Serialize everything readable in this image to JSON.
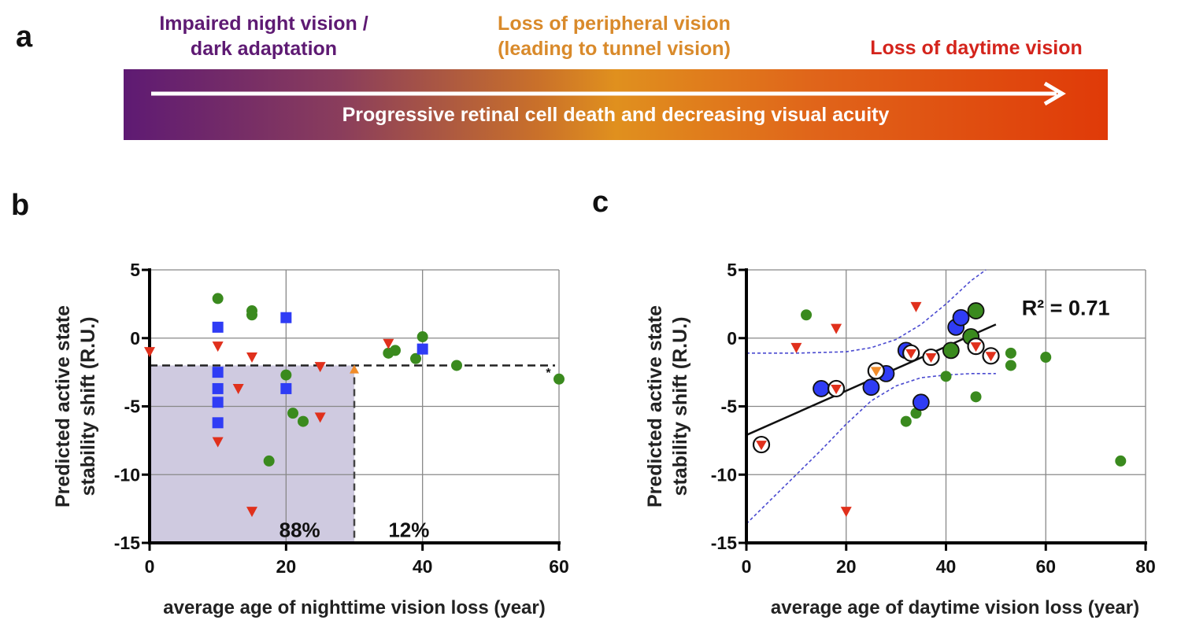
{
  "panel_a": {
    "letter": "a",
    "stage_night": [
      "Impaired night vision /",
      "dark adaptation"
    ],
    "stage_peripheral": [
      "Loss of peripheral vision",
      "(leading to tunnel vision)"
    ],
    "stage_daytime": "Loss of daytime vision",
    "bar_text": "Progressive retinal cell death and decreasing visual acuity",
    "colors": {
      "night": "#5e1a73",
      "peripheral": "#d98a2b",
      "daytime": "#d4241c"
    }
  },
  "chart_data": [
    {
      "id": "b",
      "letter": "b",
      "type": "scatter",
      "title": "",
      "xlabel": "average age of nighttime vision loss (year)",
      "ylabel": [
        "Predicted active state",
        "stability shift (R.U.)"
      ],
      "xlim": [
        0,
        60
      ],
      "ylim": [
        -15,
        5
      ],
      "xticks": [
        0,
        20,
        40,
        60
      ],
      "yticks": [
        5,
        0,
        -5,
        -10,
        -15
      ],
      "grid": true,
      "threshold_y": -2,
      "threshold_x": 30,
      "shaded_region": {
        "x": [
          0,
          30
        ],
        "y": [
          -15,
          -2
        ]
      },
      "annotations": [
        {
          "text": "88%",
          "x": 25,
          "y": -14
        },
        {
          "text": "12%",
          "x": 35,
          "y": -14
        },
        {
          "text": "*",
          "x": 59,
          "y": -2.5
        }
      ],
      "series": [
        {
          "name": "circle",
          "marker": "circle",
          "color": "#3a8a1e",
          "points": [
            [
              10,
              2.9
            ],
            [
              15,
              2.0
            ],
            [
              15,
              1.7
            ],
            [
              20,
              -2.7
            ],
            [
              21,
              -5.5
            ],
            [
              22.5,
              -6.1
            ],
            [
              17.5,
              -9
            ],
            [
              35,
              -1.1
            ],
            [
              36,
              -0.9
            ],
            [
              39,
              -1.5
            ],
            [
              40,
              0.1
            ],
            [
              45,
              -2.0
            ],
            [
              60,
              -3.0
            ]
          ]
        },
        {
          "name": "square",
          "marker": "square",
          "color": "#2f3cf5",
          "points": [
            [
              10,
              0.8
            ],
            [
              10,
              -2.5
            ],
            [
              10,
              -3.7
            ],
            [
              10,
              -4.7
            ],
            [
              10,
              -6.2
            ],
            [
              20,
              1.5
            ],
            [
              20,
              -3.7
            ],
            [
              40,
              -0.8
            ]
          ]
        },
        {
          "name": "triangle",
          "marker": "triangle-down",
          "color": "#e0301c",
          "points": [
            [
              0,
              -1.0
            ],
            [
              10,
              -0.6
            ],
            [
              10,
              -7.6
            ],
            [
              13,
              -3.7
            ],
            [
              15,
              -1.4
            ],
            [
              15,
              -12.7
            ],
            [
              25,
              -2.1
            ],
            [
              25,
              -5.8
            ],
            [
              35,
              -0.4
            ]
          ]
        },
        {
          "name": "orange-triangle",
          "marker": "triangle-up",
          "color": "#f08c2a",
          "points": [
            [
              30,
              -2.3
            ]
          ]
        }
      ]
    },
    {
      "id": "c",
      "letter": "c",
      "type": "scatter",
      "title": "",
      "xlabel": "average age of daytime vision loss (year)",
      "ylabel": [
        "Predicted active state",
        "stability shift (R.U.)"
      ],
      "xlim": [
        0,
        80
      ],
      "ylim": [
        -15,
        5
      ],
      "xticks": [
        0,
        20,
        40,
        60,
        80
      ],
      "yticks": [
        5,
        0,
        -5,
        -10,
        -15
      ],
      "grid": true,
      "annotation": "R² = 0.71",
      "regression": {
        "x": [
          0,
          50
        ],
        "y": [
          -7.1,
          1.0
        ]
      },
      "ci_upper": {
        "x": [
          0,
          10,
          20,
          25,
          30,
          35,
          40,
          45,
          48
        ],
        "y": [
          -1.1,
          -1.1,
          -1.0,
          -0.7,
          -0.1,
          1.0,
          2.5,
          4.2,
          5.0
        ]
      },
      "ci_lower": {
        "x": [
          0,
          5,
          10,
          15,
          20,
          25,
          30,
          35,
          40,
          45,
          50
        ],
        "y": [
          -13.6,
          -11.8,
          -10.0,
          -8.2,
          -6.3,
          -4.6,
          -3.5,
          -2.9,
          -2.7,
          -2.6,
          -2.6
        ]
      },
      "series": [
        {
          "name": "green-small",
          "marker": "circle",
          "size": "small",
          "color": "#3a8a1e",
          "points": [
            [
              12,
              1.7
            ],
            [
              40,
              -2.8
            ],
            [
              32,
              -6.1
            ],
            [
              34,
              -5.5
            ],
            [
              46,
              -4.3
            ],
            [
              53,
              -1.1
            ],
            [
              53,
              -2.0
            ],
            [
              60,
              -1.4
            ],
            [
              75,
              -9.0
            ]
          ]
        },
        {
          "name": "red-small",
          "marker": "triangle-down",
          "size": "small",
          "color": "#e0301c",
          "points": [
            [
              10,
              -0.7
            ],
            [
              18,
              0.7
            ],
            [
              34,
              2.3
            ],
            [
              20,
              -12.7
            ]
          ]
        },
        {
          "name": "blue-large",
          "marker": "circle",
          "size": "large",
          "color": "#2f3cf5",
          "points": [
            [
              15,
              -3.7
            ],
            [
              25,
              -3.6
            ],
            [
              28,
              -2.6
            ],
            [
              32,
              -0.9
            ],
            [
              35,
              -4.7
            ],
            [
              42,
              0.8
            ],
            [
              43,
              1.5
            ]
          ]
        },
        {
          "name": "green-large",
          "marker": "circle",
          "size": "large",
          "color": "#3a8a1e",
          "points": [
            [
              41,
              -0.9
            ],
            [
              45,
              0.1
            ],
            [
              46,
              2.0
            ]
          ]
        },
        {
          "name": "red-outlined",
          "marker": "circle-triangle",
          "size": "large",
          "color": "#e0301c",
          "points": [
            [
              3,
              -7.8
            ],
            [
              18,
              -3.7
            ],
            [
              33,
              -1.1
            ],
            [
              37,
              -1.4
            ],
            [
              46,
              -0.6
            ],
            [
              49,
              -1.3
            ]
          ]
        },
        {
          "name": "orange-outlined",
          "marker": "circle-triangle",
          "size": "large",
          "color": "#f08c2a",
          "points": [
            [
              26,
              -2.4
            ]
          ]
        }
      ]
    }
  ]
}
